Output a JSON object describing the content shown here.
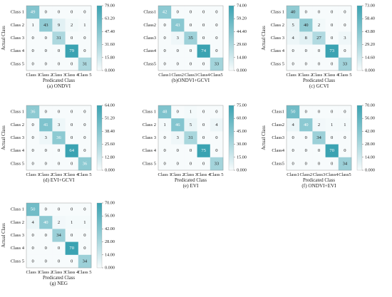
{
  "colors": {
    "low": "#f7fbfc",
    "high": "#3ba3b2",
    "text_dark": "#222222",
    "text_light": "#ffffff"
  },
  "chart_data": [
    {
      "type": "heatmap",
      "caption": "(a) ONDVI",
      "xlabel": "Predicated Class",
      "ylabel": "Actual Class",
      "xticks": [
        "Class 1",
        "Class 2",
        "Class 3",
        "Class 4",
        "Class 5"
      ],
      "yticks": [
        "Class 1",
        "Class 2",
        "Class 3",
        "Class 4",
        "Class 5"
      ],
      "matrix": [
        [
          49,
          0,
          0,
          0,
          0
        ],
        [
          1,
          43,
          9,
          2,
          1
        ],
        [
          0,
          0,
          31,
          0,
          0
        ],
        [
          0,
          0,
          0,
          79,
          0
        ],
        [
          0,
          0,
          0,
          0,
          31
        ]
      ],
      "colorbar": {
        "range": [
          0,
          79
        ],
        "ticks": [
          "0.000",
          "15.80",
          "31.60",
          "47.40",
          "63.20",
          "79.00"
        ]
      }
    },
    {
      "type": "heatmap",
      "caption": "(b)ONDVI+GCVI",
      "xlabel": "",
      "ylabel": "",
      "xticks": [
        "Class1",
        "Class2",
        "Class3",
        "Class4",
        "Class5"
      ],
      "yticks": [
        "Class1",
        "Class2",
        "Class3",
        "Class4",
        "Class5"
      ],
      "matrix": [
        [
          42,
          0,
          0,
          0,
          0
        ],
        [
          0,
          43,
          0,
          0,
          0
        ],
        [
          0,
          3,
          35,
          0,
          0
        ],
        [
          0,
          0,
          0,
          74,
          0
        ],
        [
          0,
          0,
          0,
          0,
          33
        ]
      ],
      "colorbar": {
        "range": [
          0,
          74
        ],
        "ticks": [
          "0.000",
          "14.80",
          "29.60",
          "44.40",
          "59.20",
          "74.00"
        ]
      }
    },
    {
      "type": "heatmap",
      "caption": "(c) GCVI",
      "xlabel": "Predicated Class",
      "ylabel": "Actual Class",
      "xticks": [
        "Class 1",
        "Class 2",
        "Class 3",
        "Class 4",
        "Class 5"
      ],
      "yticks": [
        "Class 1",
        "Class 2",
        "Class 3",
        "Class 4",
        "Class 5"
      ],
      "matrix": [
        [
          40,
          0,
          0,
          0,
          0
        ],
        [
          5,
          40,
          2,
          0,
          0
        ],
        [
          4,
          8,
          27,
          0,
          3
        ],
        [
          0,
          0,
          0,
          73,
          0
        ],
        [
          0,
          0,
          0,
          0,
          33
        ]
      ],
      "colorbar": {
        "range": [
          0,
          73
        ],
        "ticks": [
          "0.000",
          "14.60",
          "29.20",
          "43.80",
          "58.40",
          "73.00"
        ]
      }
    },
    {
      "type": "heatmap",
      "caption": "(d) EVI+GCVI",
      "xlabel": "",
      "ylabel": "Actual Class",
      "xticks": [
        "Class 1",
        "Class 2",
        "Class 3",
        "Class 4",
        "Class 5"
      ],
      "yticks": [
        "Class 1",
        "Class 2",
        "Class 3",
        "Class 4",
        "Class 5"
      ],
      "matrix": [
        [
          36,
          0,
          0,
          0,
          0
        ],
        [
          0,
          41,
          3,
          0,
          0
        ],
        [
          0,
          3,
          36,
          0,
          0
        ],
        [
          0,
          0,
          0,
          64,
          0
        ],
        [
          0,
          0,
          0,
          0,
          36
        ]
      ],
      "colorbar": {
        "range": [
          0,
          64
        ],
        "ticks": [
          "0.000",
          "12.80",
          "25.60",
          "38.40",
          "51.20",
          "64.00"
        ]
      }
    },
    {
      "type": "heatmap",
      "caption": "(e) EVI",
      "xlabel": "Predicated Class",
      "ylabel": "",
      "xticks": [
        "Class 1",
        "Class 2",
        "Class 3",
        "Class 4",
        "Class 5"
      ],
      "yticks": [
        "Class 1",
        "Class 2",
        "Class 3",
        "Class 4",
        "Class 5"
      ],
      "matrix": [
        [
          48,
          0,
          1,
          0,
          0
        ],
        [
          1,
          46,
          5,
          0,
          4
        ],
        [
          0,
          3,
          31,
          0,
          0
        ],
        [
          0,
          0,
          0,
          75,
          0
        ],
        [
          0,
          0,
          0,
          0,
          33
        ]
      ],
      "colorbar": {
        "range": [
          0,
          75
        ],
        "ticks": [
          "0.000",
          "15.00",
          "30.00",
          "45.00",
          "60.00",
          "75.00"
        ]
      }
    },
    {
      "type": "heatmap",
      "caption": "(f) ONDVI+EVI",
      "xlabel": "Predicated Class",
      "ylabel": "Actual Class",
      "xticks": [
        "Class1",
        "Class2",
        "Class3",
        "Class4",
        "Class5"
      ],
      "yticks": [
        "Class1",
        "Class2",
        "Class3",
        "Class4",
        "Class5"
      ],
      "matrix": [
        [
          50,
          0,
          0,
          0,
          0
        ],
        [
          4,
          40,
          2,
          1,
          1
        ],
        [
          0,
          0,
          34,
          0,
          0
        ],
        [
          0,
          0,
          0,
          70,
          0
        ],
        [
          0,
          0,
          0,
          0,
          34
        ]
      ],
      "colorbar": {
        "range": [
          0,
          70
        ],
        "ticks": [
          "0.000",
          "14.00",
          "28.00",
          "42.00",
          "56.00",
          "70.00"
        ]
      }
    },
    {
      "type": "heatmap",
      "caption": "(g) NEG",
      "xlabel": "Predicated Class",
      "ylabel": "Actual Class",
      "xticks": [
        "Class 1",
        "Class 2",
        "Class 3",
        "Class 4",
        "Class 5"
      ],
      "yticks": [
        "Class 1",
        "Class 2",
        "Class 3",
        "Class 4",
        "Class 5"
      ],
      "matrix": [
        [
          50,
          0,
          0,
          0,
          0
        ],
        [
          4,
          40,
          2,
          1,
          1
        ],
        [
          0,
          0,
          34,
          0,
          0
        ],
        [
          0,
          0,
          0,
          70,
          0
        ],
        [
          0,
          0,
          0,
          0,
          34
        ]
      ],
      "colorbar": {
        "range": [
          0,
          70
        ],
        "ticks": [
          "0.000",
          "14.00",
          "28.00",
          "42.00",
          "56.00",
          "70.00"
        ]
      }
    }
  ]
}
